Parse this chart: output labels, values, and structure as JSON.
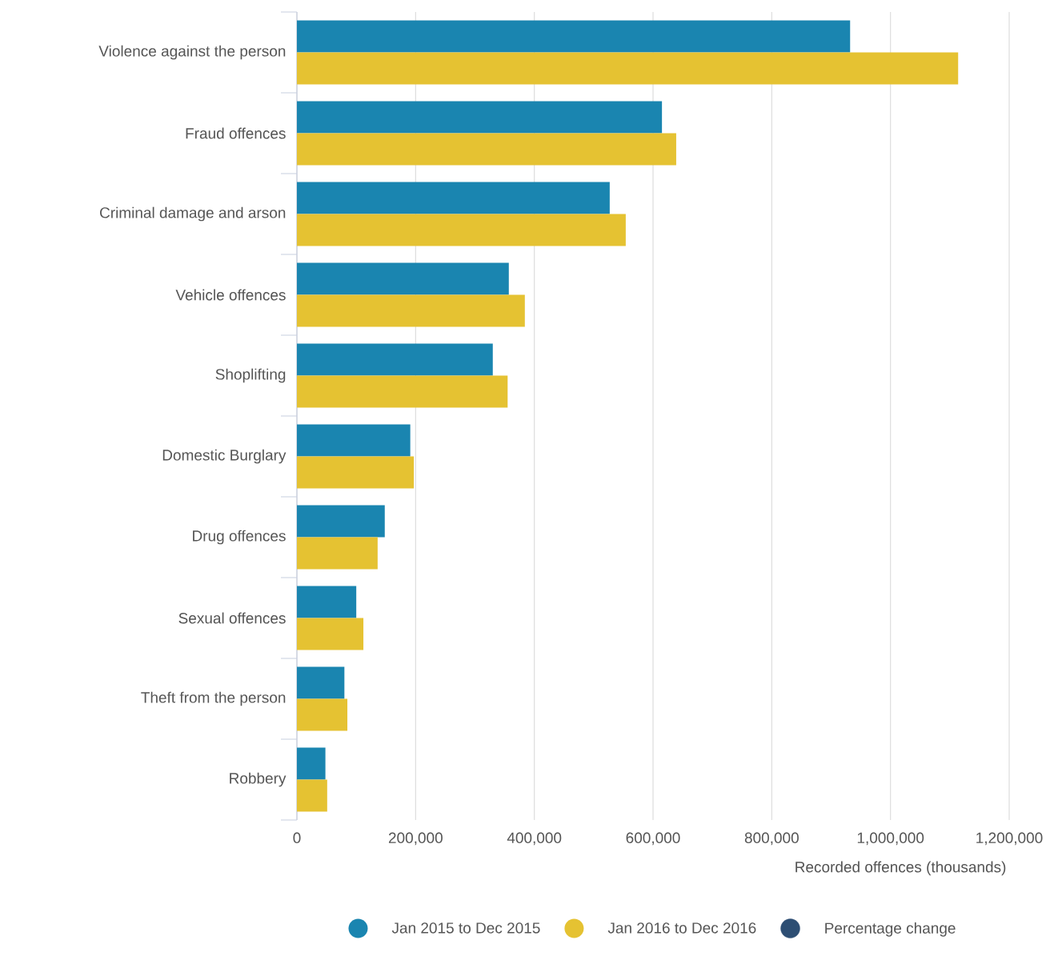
{
  "chart_data": {
    "type": "bar",
    "orientation": "horizontal",
    "categories": [
      "Violence against the person",
      "Fraud offences",
      "Criminal damage and arson",
      "Vehicle offences",
      "Shoplifting",
      "Domestic Burglary",
      "Drug offences",
      "Sexual offences",
      "Theft from the person",
      "Robbery"
    ],
    "series": [
      {
        "name": "Jan 2015 to Dec 2015",
        "color": "#1a85b0",
        "values": [
          932000,
          615000,
          527000,
          357000,
          330000,
          191000,
          148000,
          100000,
          80000,
          48000
        ]
      },
      {
        "name": "Jan 2016 to Dec 2016",
        "color": "#e5c232",
        "values": [
          1114000,
          639000,
          554000,
          384000,
          355000,
          197000,
          136000,
          112000,
          85000,
          51000
        ]
      },
      {
        "name": "Percentage change",
        "color": "#2d4e73",
        "values": [
          null,
          null,
          null,
          null,
          null,
          null,
          null,
          null,
          null,
          null
        ]
      }
    ],
    "xlim": [
      0,
      1200000
    ],
    "xticks": [
      {
        "value": 0,
        "label": "0"
      },
      {
        "value": 200000,
        "label": "200,000"
      },
      {
        "value": 400000,
        "label": "400,000"
      },
      {
        "value": 600000,
        "label": "600,000"
      },
      {
        "value": 800000,
        "label": "800,000"
      },
      {
        "value": 1000000,
        "label": "1,000,000"
      },
      {
        "value": 1200000,
        "label": "1,200,000"
      }
    ],
    "xlabel": "Recorded offences (thousands)",
    "grid": "x",
    "legend": "bottom"
  }
}
